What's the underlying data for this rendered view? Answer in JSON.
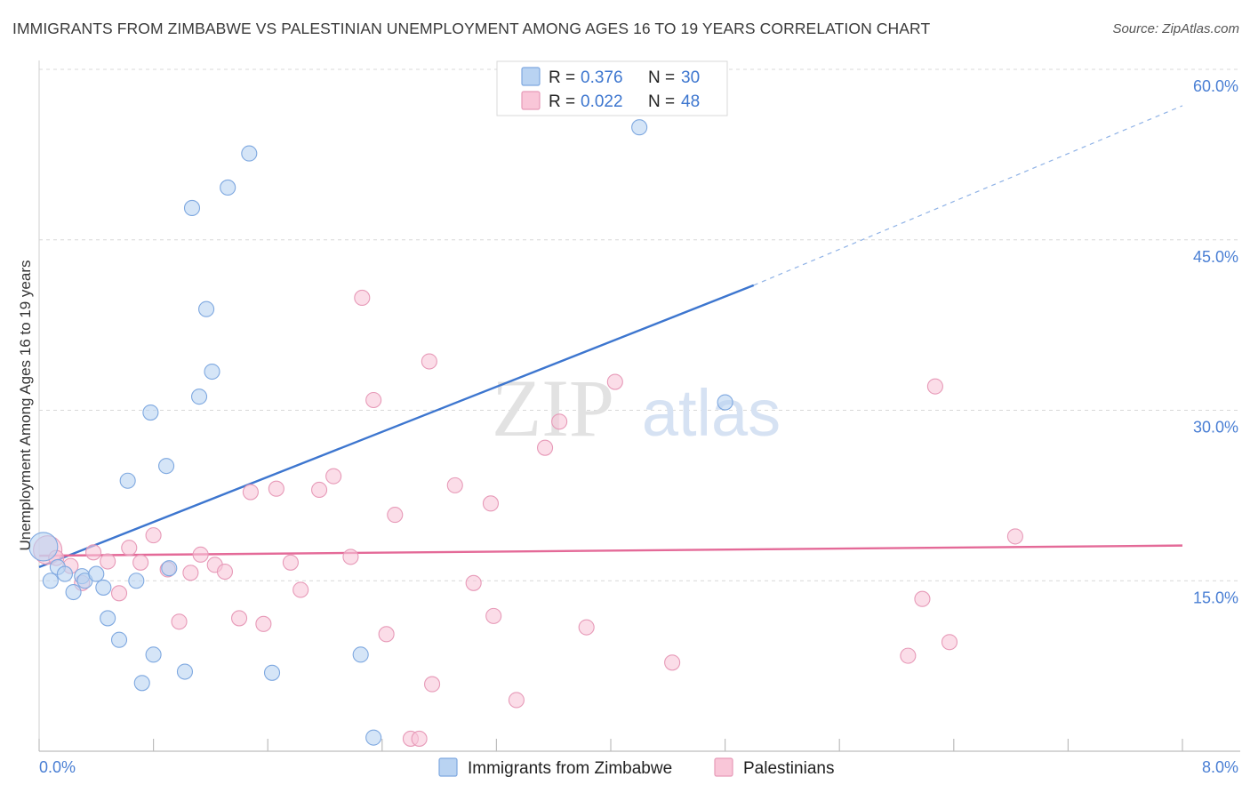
{
  "title": "IMMIGRANTS FROM ZIMBABWE VS PALESTINIAN UNEMPLOYMENT AMONG AGES 16 TO 19 YEARS CORRELATION CHART",
  "source": "Source: ZipAtlas.com",
  "watermark": {
    "zip": "ZIP",
    "atlas": "atlas"
  },
  "colors": {
    "blue": "#3d76cf",
    "blue_fill": "#b9d3f2",
    "blue_stroke": "#7ea8e0",
    "pink": "#e46a98",
    "pink_fill": "#f9c6d8",
    "pink_stroke": "#e79ab8",
    "grid": "#d8d8d8",
    "tick": "#4a7fd4"
  },
  "legend": {
    "rows": [
      {
        "r_label": "R =",
        "r_value": "0.376",
        "n_label": "N =",
        "n_value": "30"
      },
      {
        "r_label": "R =",
        "r_value": "0.022",
        "n_label": "N =",
        "n_value": "48"
      }
    ]
  },
  "chart_data": {
    "type": "scatter",
    "title": "IMMIGRANTS FROM ZIMBABWE VS PALESTINIAN UNEMPLOYMENT AMONG AGES 16 TO 19 YEARS CORRELATION CHART",
    "xlabel": "",
    "ylabel": "Unemployment Among Ages 16 to 19 years",
    "xlim": [
      0,
      8
    ],
    "ylim": [
      0,
      60
    ],
    "x_tick_labels": [
      "0.0%",
      "8.0%"
    ],
    "y_ticks": [
      15,
      30,
      45,
      60
    ],
    "y_tick_labels": [
      "15.0%",
      "30.0%",
      "45.0%",
      "60.0%"
    ],
    "grid": true,
    "series": [
      {
        "name": "Immigrants from Zimbabwe",
        "R": 0.376,
        "N": 30,
        "trend": {
          "x0": 0.0,
          "y0": 16.2,
          "x1": 5.0,
          "y1": 41.0,
          "dashed_to_x": 8.0,
          "dashed_to_y": 56.8
        },
        "points": [
          {
            "x": 0.03,
            "y": 18.0,
            "big": true
          },
          {
            "x": 0.08,
            "y": 15.0
          },
          {
            "x": 0.13,
            "y": 16.2
          },
          {
            "x": 0.18,
            "y": 15.6
          },
          {
            "x": 0.24,
            "y": 14.0
          },
          {
            "x": 0.3,
            "y": 15.4
          },
          {
            "x": 0.32,
            "y": 15.0
          },
          {
            "x": 0.4,
            "y": 15.6
          },
          {
            "x": 0.45,
            "y": 14.4
          },
          {
            "x": 0.48,
            "y": 11.7
          },
          {
            "x": 0.56,
            "y": 9.8
          },
          {
            "x": 0.62,
            "y": 23.8
          },
          {
            "x": 0.68,
            "y": 15.0
          },
          {
            "x": 0.72,
            "y": 6.0
          },
          {
            "x": 0.78,
            "y": 29.8
          },
          {
            "x": 0.8,
            "y": 8.5
          },
          {
            "x": 0.89,
            "y": 25.1
          },
          {
            "x": 0.91,
            "y": 16.1
          },
          {
            "x": 1.02,
            "y": 7.0
          },
          {
            "x": 1.07,
            "y": 47.8
          },
          {
            "x": 1.12,
            "y": 31.2
          },
          {
            "x": 1.17,
            "y": 38.9
          },
          {
            "x": 1.21,
            "y": 33.4
          },
          {
            "x": 1.32,
            "y": 49.6
          },
          {
            "x": 1.47,
            "y": 52.6
          },
          {
            "x": 1.63,
            "y": 6.9
          },
          {
            "x": 2.25,
            "y": 8.5
          },
          {
            "x": 2.34,
            "y": 1.2
          },
          {
            "x": 4.2,
            "y": 54.9
          },
          {
            "x": 4.8,
            "y": 30.7
          }
        ]
      },
      {
        "name": "Palestinians",
        "R": 0.022,
        "N": 48,
        "trend": {
          "x0": 0.0,
          "y0": 17.2,
          "x1": 8.0,
          "y1": 18.1
        },
        "points": [
          {
            "x": 0.06,
            "y": 17.7,
            "big": true
          },
          {
            "x": 0.12,
            "y": 17.0
          },
          {
            "x": 0.22,
            "y": 16.3
          },
          {
            "x": 0.3,
            "y": 14.8
          },
          {
            "x": 0.38,
            "y": 17.5
          },
          {
            "x": 0.48,
            "y": 16.7
          },
          {
            "x": 0.56,
            "y": 13.9
          },
          {
            "x": 0.63,
            "y": 17.9
          },
          {
            "x": 0.71,
            "y": 16.6
          },
          {
            "x": 0.8,
            "y": 19.0
          },
          {
            "x": 0.9,
            "y": 16.0
          },
          {
            "x": 0.98,
            "y": 11.4
          },
          {
            "x": 1.06,
            "y": 15.7
          },
          {
            "x": 1.13,
            "y": 17.3
          },
          {
            "x": 1.23,
            "y": 16.4
          },
          {
            "x": 1.3,
            "y": 15.8
          },
          {
            "x": 1.4,
            "y": 11.7
          },
          {
            "x": 1.48,
            "y": 22.8
          },
          {
            "x": 1.57,
            "y": 11.2
          },
          {
            "x": 1.66,
            "y": 23.1
          },
          {
            "x": 1.76,
            "y": 16.6
          },
          {
            "x": 1.83,
            "y": 14.2
          },
          {
            "x": 1.96,
            "y": 23.0
          },
          {
            "x": 2.06,
            "y": 24.2
          },
          {
            "x": 2.18,
            "y": 17.1
          },
          {
            "x": 2.26,
            "y": 39.9
          },
          {
            "x": 2.34,
            "y": 30.9
          },
          {
            "x": 2.43,
            "y": 10.3
          },
          {
            "x": 2.49,
            "y": 20.8
          },
          {
            "x": 2.6,
            "y": 1.1
          },
          {
            "x": 2.66,
            "y": 1.1
          },
          {
            "x": 2.73,
            "y": 34.3
          },
          {
            "x": 2.75,
            "y": 5.9
          },
          {
            "x": 2.91,
            "y": 23.4
          },
          {
            "x": 3.04,
            "y": 14.8
          },
          {
            "x": 3.16,
            "y": 21.8
          },
          {
            "x": 3.18,
            "y": 11.9
          },
          {
            "x": 3.34,
            "y": 4.5
          },
          {
            "x": 3.54,
            "y": 26.7
          },
          {
            "x": 3.64,
            "y": 29.0
          },
          {
            "x": 3.83,
            "y": 10.9
          },
          {
            "x": 4.03,
            "y": 32.5
          },
          {
            "x": 4.43,
            "y": 7.8
          },
          {
            "x": 6.08,
            "y": 8.4
          },
          {
            "x": 6.18,
            "y": 13.4
          },
          {
            "x": 6.27,
            "y": 32.1
          },
          {
            "x": 6.37,
            "y": 9.6
          },
          {
            "x": 6.83,
            "y": 18.9
          }
        ]
      }
    ]
  }
}
